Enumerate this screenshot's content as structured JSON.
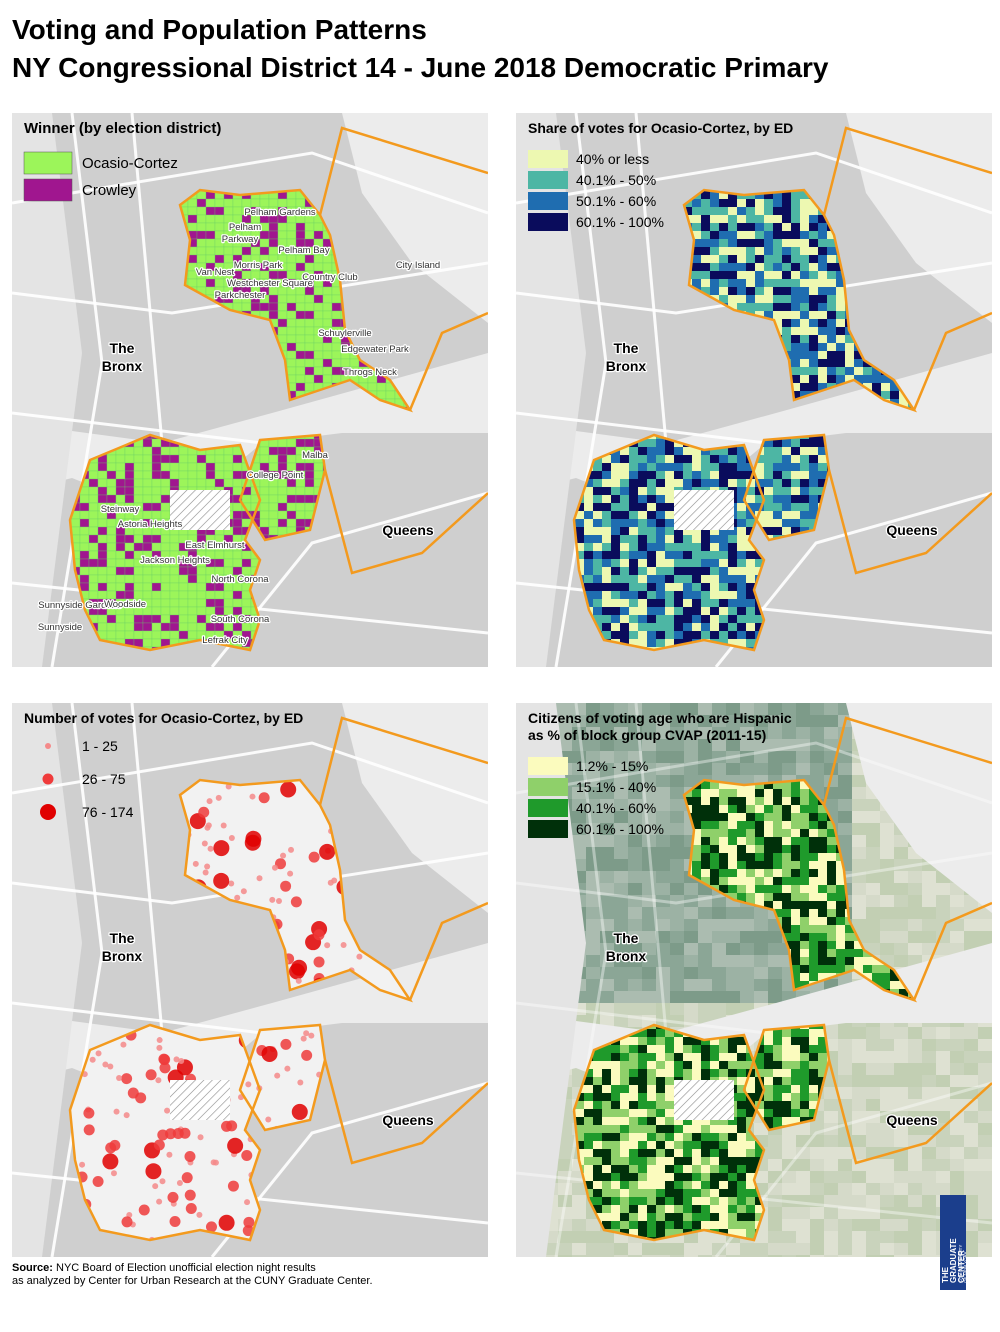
{
  "title": [
    "Voting and Population Patterns",
    "NY Congressional District 14 - June 2018 Democratic Primary"
  ],
  "place_labels": {
    "bronx": [
      "The",
      "Bronx"
    ],
    "queens": "Queens"
  },
  "panels": [
    {
      "legend_title": [
        "Winner (by election district)"
      ],
      "symbol": "square",
      "legend": [
        {
          "label": "Ocasio-Cortez",
          "color": "#9cf55a"
        },
        {
          "label": "Crowley",
          "color": "#a0168f"
        }
      ],
      "places": [
        "Pelham Gardens",
        "Pelham",
        "Parkway",
        "Pelham Bay",
        "Morris Park",
        "Van Nest",
        "Westchester Square",
        "Parkchester",
        "Country Club",
        "Schuylerville",
        "Edgewater Park",
        "Throgs Neck",
        "City Island",
        "Malba",
        "College Point",
        "Steinway",
        "Astoria Heights",
        "East Elmhurst",
        "Jackson Heights",
        "North Corona",
        "Sunnyside Gardens",
        "Woodside",
        "Sunnyside",
        "South Corona",
        "Lefrak City"
      ]
    },
    {
      "legend_title": [
        "Share of votes for Ocasio-Cortez, by ED"
      ],
      "symbol": "square",
      "legend": [
        {
          "label": "40% or less",
          "color": "#edf8b1"
        },
        {
          "label": "40.1% - 50%",
          "color": "#4db6a4"
        },
        {
          "label": "50.1% - 60%",
          "color": "#1f6db0"
        },
        {
          "label": "60.1% - 100%",
          "color": "#0a0c5c"
        }
      ],
      "places": []
    },
    {
      "legend_title": [
        "Number of votes for Ocasio-Cortez, by ED"
      ],
      "symbol": "circle",
      "legend": [
        {
          "label": "1 - 25",
          "color": "#f48a8a"
        },
        {
          "label": "26 - 75",
          "color": "#ef3b3b"
        },
        {
          "label": "76 - 174",
          "color": "#e00000"
        }
      ],
      "places": []
    },
    {
      "legend_title": [
        "Citizens of voting age who are Hispanic",
        "as % of block group CVAP (2011-15)"
      ],
      "symbol": "square",
      "legend": [
        {
          "label": "1.2% - 15%",
          "color": "#fbfbbe"
        },
        {
          "label": "15.1% - 40%",
          "color": "#8fd06a"
        },
        {
          "label": "40.1% - 60%",
          "color": "#1f9a2b"
        },
        {
          "label": "60.1% - 100%",
          "color": "#00300a"
        }
      ],
      "places": []
    }
  ],
  "source": {
    "label": "Source:",
    "lines": [
      "NYC Board of Election unofficial election night results",
      "as analyzed by Center for Urban Research at the CUNY Graduate Center."
    ]
  },
  "logo": {
    "name": [
      "THE",
      "GRADUATE",
      "CENTER"
    ],
    "sub": [
      "CITY UNIVERSITY",
      "OF NEW YORK"
    ]
  }
}
